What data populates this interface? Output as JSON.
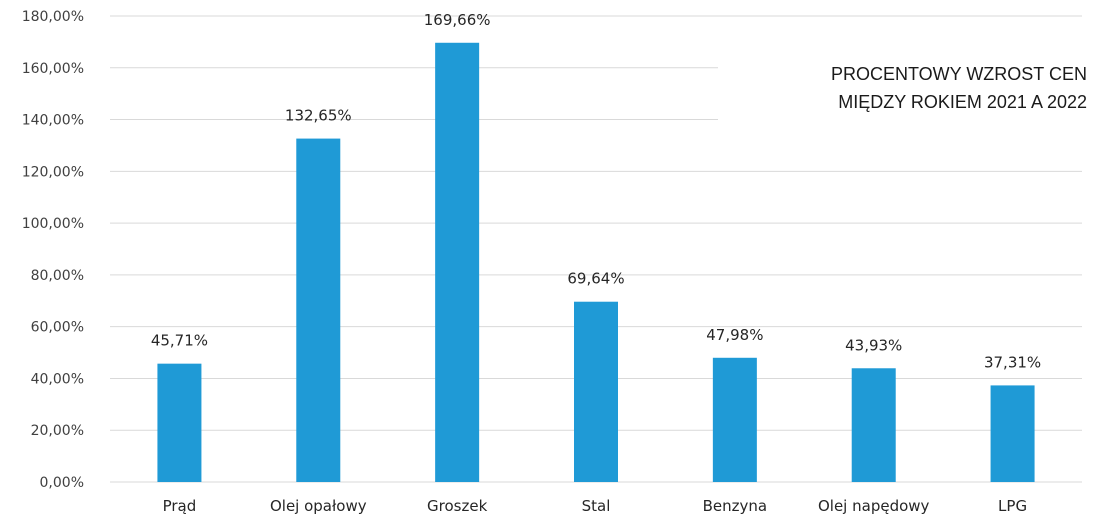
{
  "chart_data": {
    "type": "bar",
    "title_lines": [
      "PROCENTOWY WZROST CEN",
      "MIĘDZY ROKIEM 2021 A 2022"
    ],
    "categories": [
      "Prąd",
      "Olej opałowy",
      "Groszek",
      "Stal",
      "Benzyna",
      "Olej napędowy",
      "LPG"
    ],
    "values": [
      45.71,
      132.65,
      169.66,
      69.64,
      47.98,
      43.93,
      37.31
    ],
    "data_labels": [
      "45,71%",
      "132,65%",
      "169,66%",
      "69,64%",
      "47,98%",
      "43,93%",
      "37,31%"
    ],
    "ylim": [
      0,
      180
    ],
    "y_ticks": [
      0,
      20,
      40,
      60,
      80,
      100,
      120,
      140,
      160,
      180
    ],
    "y_tick_labels": [
      "0,00%",
      "20,00%",
      "40,00%",
      "60,00%",
      "80,00%",
      "100,00%",
      "120,00%",
      "140,00%",
      "160,00%",
      "180,00%"
    ],
    "grid": true,
    "legend": "none",
    "bar_color": "#1f9ad6",
    "xlabel": "",
    "ylabel": ""
  }
}
